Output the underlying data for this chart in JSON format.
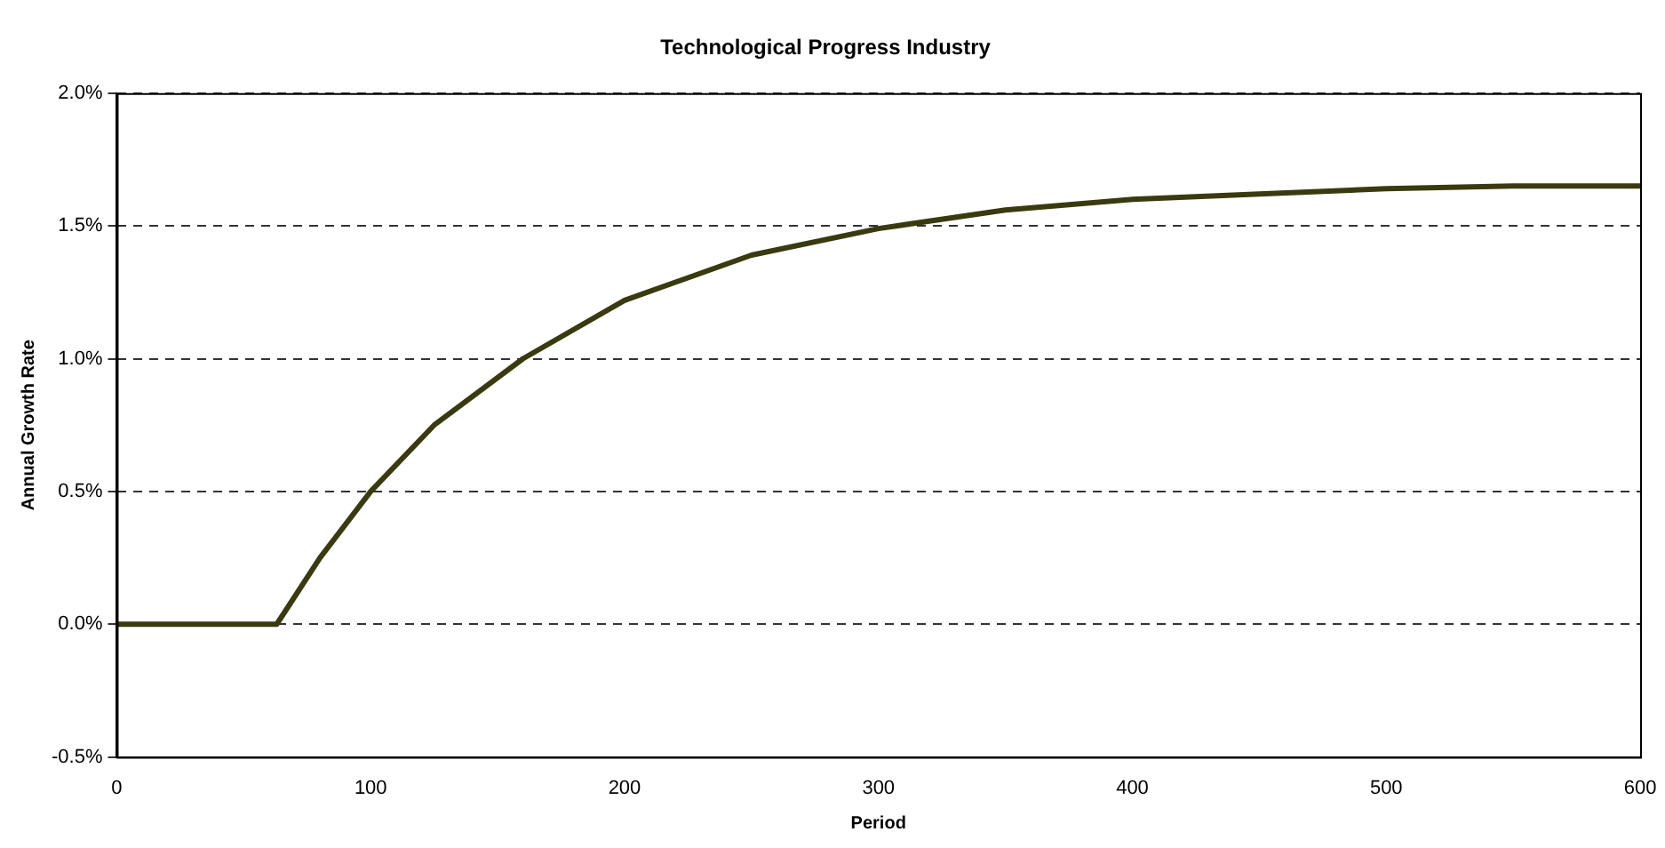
{
  "chart_data": {
    "type": "line",
    "title": "Technological Progress Industry",
    "xlabel": "Period",
    "ylabel": "Annual Growth Rate",
    "x": [
      0,
      63,
      80,
      100,
      125,
      160,
      200,
      250,
      300,
      350,
      400,
      450,
      500,
      550,
      600
    ],
    "series": [
      {
        "color": "#3a3a10",
        "values": [
          0,
          0,
          0.25,
          0.5,
          0.75,
          1.0,
          1.22,
          1.39,
          1.49,
          1.56,
          1.6,
          1.62,
          1.64,
          1.65,
          1.65
        ]
      }
    ],
    "xlim": [
      0,
      600
    ],
    "xticks": [
      0,
      100,
      200,
      300,
      400,
      500,
      600
    ],
    "ylim": [
      -0.5,
      2.0
    ],
    "yticks": [
      {
        "value": -0.5,
        "label": "-0.5%"
      },
      {
        "value": 0,
        "label": "0.0%"
      },
      {
        "value": 0.5,
        "label": "0.5%"
      },
      {
        "value": 1.0,
        "label": "1.0%"
      },
      {
        "value": 1.5,
        "label": "1.5%"
      },
      {
        "value": 2.0,
        "label": "2.0%"
      }
    ],
    "grid": "y",
    "legend": false,
    "marker": "none",
    "line_style": "solid"
  }
}
